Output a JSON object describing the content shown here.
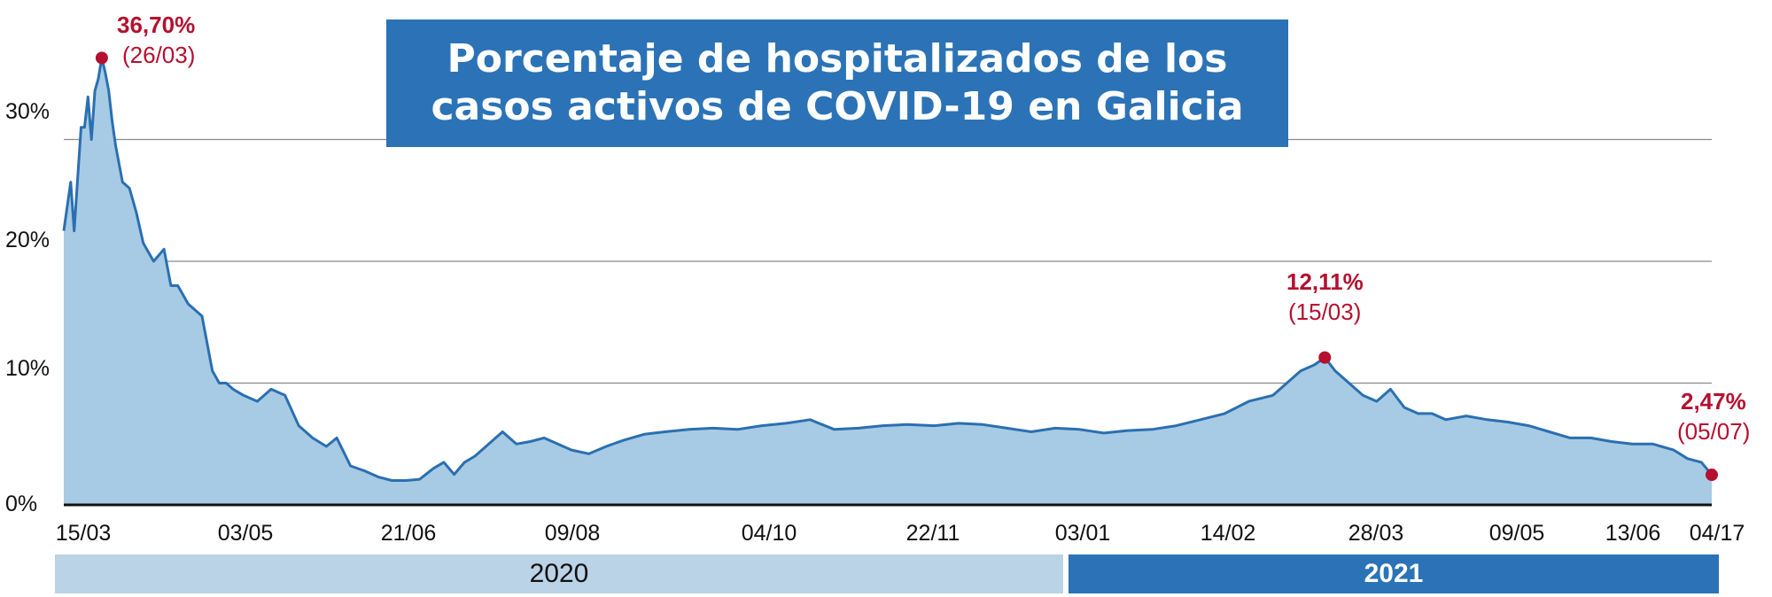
{
  "chart_data": {
    "type": "area",
    "title": "Porcentaje de hospitalizados de los casos activos de COVID-19 en Galicia",
    "y_ticks": [
      "30%",
      "20%",
      "10%",
      "0%"
    ],
    "ylim": [
      0,
      40
    ],
    "x_ticks": [
      "15/03",
      "03/05",
      "21/06",
      "09/08",
      "04/10",
      "22/11",
      "03/01",
      "14/02",
      "28/03",
      "09/05",
      "13/06",
      "04/17"
    ],
    "grid": true,
    "colors": {
      "line": "#2b6fb0",
      "fill": "#a7cbe4",
      "accent": "#b5102f",
      "band_2020": "#bad3e7",
      "band_2021": "#2b73b6"
    },
    "years": [
      {
        "label": "2020",
        "start": "2020-03-15",
        "end": "2020-12-31"
      },
      {
        "label": "2021",
        "start": "2021-01-01",
        "end": "2021-07-05"
      }
    ],
    "series": [
      {
        "x": [
          "2020-03-15",
          "2020-03-17",
          "2020-03-18",
          "2020-03-20",
          "2020-03-21",
          "2020-03-22",
          "2020-03-23",
          "2020-03-24",
          "2020-03-25",
          "2020-03-26",
          "2020-03-27",
          "2020-03-28",
          "2020-03-29",
          "2020-03-30",
          "2020-04-01",
          "2020-04-03",
          "2020-04-05",
          "2020-04-07",
          "2020-04-10",
          "2020-04-13",
          "2020-04-15",
          "2020-04-17",
          "2020-04-20",
          "2020-04-24",
          "2020-04-27",
          "2020-04-29",
          "2020-05-01",
          "2020-05-03",
          "2020-05-06",
          "2020-05-10",
          "2020-05-14",
          "2020-05-18",
          "2020-05-22",
          "2020-05-26",
          "2020-05-30",
          "2020-06-02",
          "2020-06-06",
          "2020-06-10",
          "2020-06-14",
          "2020-06-18",
          "2020-06-22",
          "2020-06-26",
          "2020-06-30",
          "2020-07-03",
          "2020-07-06",
          "2020-07-09",
          "2020-07-12",
          "2020-07-16",
          "2020-07-20",
          "2020-07-24",
          "2020-07-28",
          "2020-08-01",
          "2020-08-05",
          "2020-08-09",
          "2020-08-14",
          "2020-08-19",
          "2020-08-24",
          "2020-08-30",
          "2020-09-05",
          "2020-09-12",
          "2020-09-19",
          "2020-09-26",
          "2020-10-03",
          "2020-10-10",
          "2020-10-17",
          "2020-10-24",
          "2020-10-31",
          "2020-11-07",
          "2020-11-14",
          "2020-11-22",
          "2020-11-29",
          "2020-12-06",
          "2020-12-13",
          "2020-12-20",
          "2020-12-27",
          "2021-01-03",
          "2021-01-10",
          "2021-01-17",
          "2021-01-24",
          "2021-01-31",
          "2021-02-07",
          "2021-02-14",
          "2021-02-21",
          "2021-02-28",
          "2021-03-04",
          "2021-03-08",
          "2021-03-12",
          "2021-03-15",
          "2021-03-18",
          "2021-03-22",
          "2021-03-26",
          "2021-03-30",
          "2021-04-03",
          "2021-04-07",
          "2021-04-11",
          "2021-04-15",
          "2021-04-19",
          "2021-04-25",
          "2021-05-01",
          "2021-05-07",
          "2021-05-13",
          "2021-05-19",
          "2021-05-25",
          "2021-05-31",
          "2021-06-06",
          "2021-06-12",
          "2021-06-18",
          "2021-06-24",
          "2021-06-28",
          "2021-07-02",
          "2021-07-05"
        ],
        "values": [
          22.5,
          26.5,
          22.5,
          31.0,
          31.0,
          33.5,
          30.0,
          34.0,
          35.0,
          36.7,
          35.5,
          34.0,
          31.5,
          29.5,
          26.5,
          26.0,
          24.0,
          21.5,
          20.0,
          21.0,
          18.0,
          18.0,
          16.5,
          15.5,
          11.0,
          10.0,
          10.0,
          9.5,
          9.0,
          8.5,
          9.5,
          9.0,
          6.5,
          5.5,
          4.8,
          5.5,
          3.2,
          2.8,
          2.3,
          2.0,
          2.0,
          2.1,
          3.0,
          3.5,
          2.5,
          3.5,
          4.0,
          5.0,
          6.0,
          5.0,
          5.2,
          5.5,
          5.0,
          4.5,
          4.2,
          4.8,
          5.3,
          5.8,
          6.0,
          6.2,
          6.3,
          6.2,
          6.5,
          6.7,
          7.0,
          6.2,
          6.3,
          6.5,
          6.6,
          6.5,
          6.7,
          6.6,
          6.3,
          6.0,
          6.3,
          6.2,
          5.9,
          6.1,
          6.2,
          6.5,
          7.0,
          7.5,
          8.5,
          9.0,
          10.0,
          11.0,
          11.5,
          12.1,
          11.0,
          10.0,
          9.0,
          8.5,
          9.5,
          8.0,
          7.5,
          7.5,
          7.0,
          7.3,
          7.0,
          6.8,
          6.5,
          6.0,
          5.5,
          5.5,
          5.2,
          5.0,
          5.0,
          4.5,
          3.8,
          3.5,
          2.47
        ]
      }
    ],
    "annotations": [
      {
        "value": "36,70%",
        "date": "(26/03)"
      },
      {
        "value": "12,11%",
        "date": "(15/03)"
      },
      {
        "value": "2,47%",
        "date": "(05/07)"
      }
    ]
  }
}
